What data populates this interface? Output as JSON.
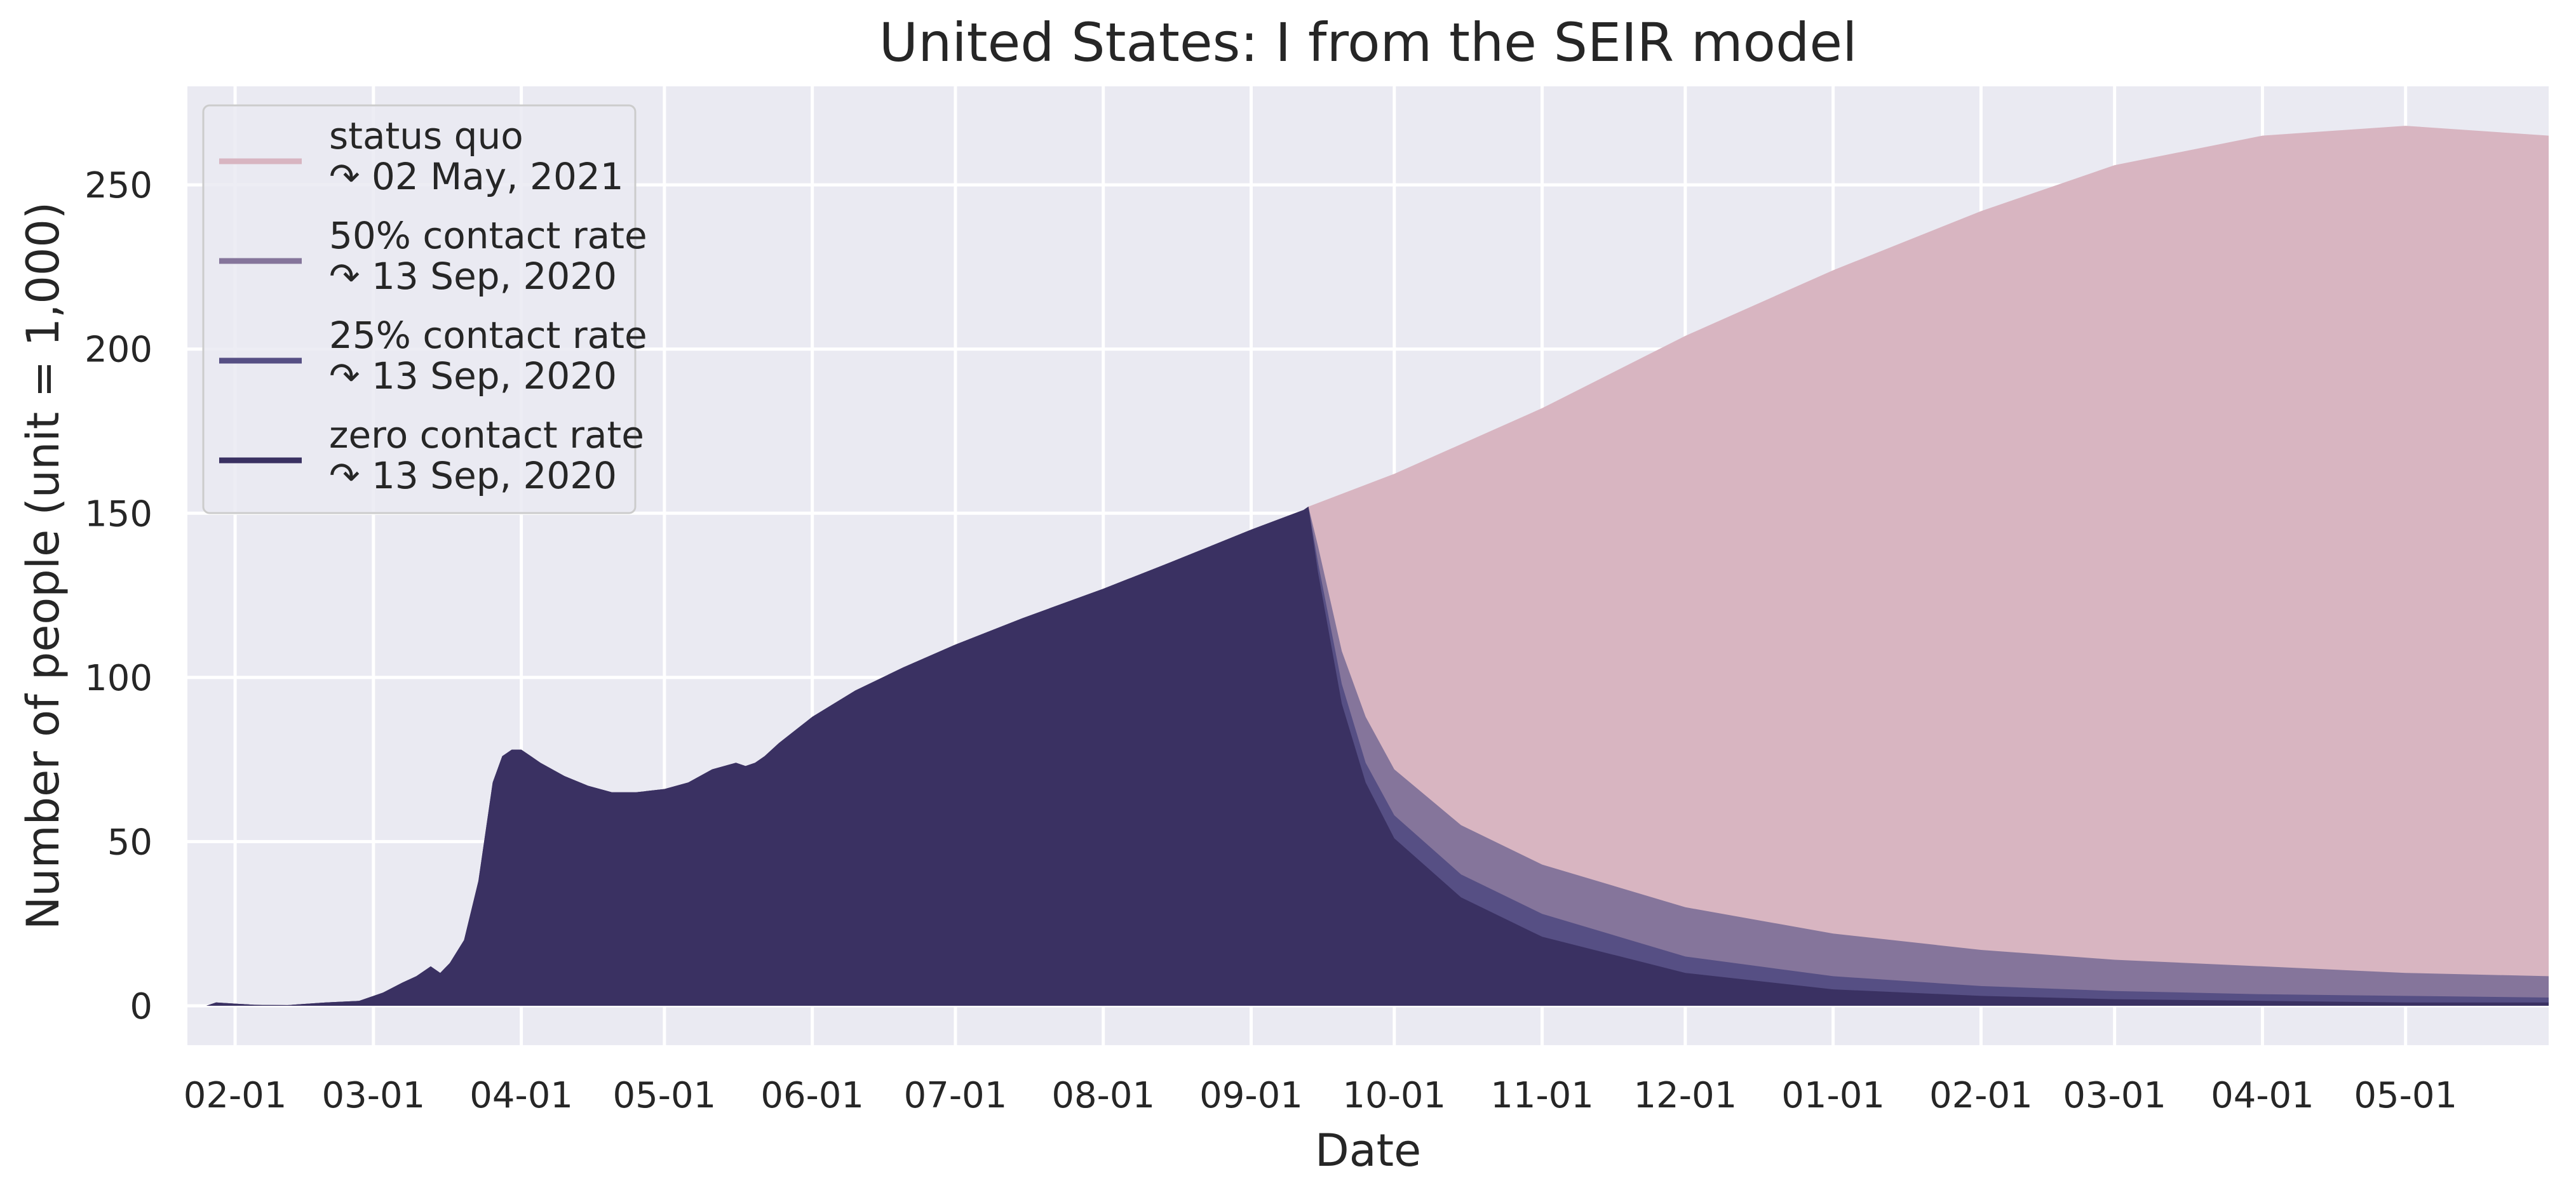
{
  "chart_data": {
    "type": "area",
    "title": "United States: I from the SEIR model",
    "xlabel": "Date",
    "ylabel": "Number of people (unit = 1,000)",
    "xlim": [
      "2020-01-22",
      "2021-05-31"
    ],
    "ylim": [
      -12,
      280
    ],
    "grid": true,
    "legend_position": "top-left",
    "x_ticks": [
      "02-01",
      "03-01",
      "04-01",
      "05-01",
      "06-01",
      "07-01",
      "08-01",
      "09-01",
      "10-01",
      "11-01",
      "12-01",
      "01-01",
      "02-01",
      "03-01",
      "04-01",
      "05-01"
    ],
    "x_tick_dates": [
      "2020-02-01",
      "2020-03-01",
      "2020-04-01",
      "2020-05-01",
      "2020-06-01",
      "2020-07-01",
      "2020-08-01",
      "2020-09-01",
      "2020-10-01",
      "2020-11-01",
      "2020-12-01",
      "2021-01-01",
      "2021-02-01",
      "2021-03-01",
      "2021-04-01",
      "2021-05-01"
    ],
    "y_ticks": [
      0,
      50,
      100,
      150,
      200,
      250
    ],
    "history": {
      "x": [
        "2020-01-22",
        "2020-01-26",
        "2020-01-28",
        "2020-02-05",
        "2020-02-12",
        "2020-02-20",
        "2020-02-27",
        "2020-03-03",
        "2020-03-07",
        "2020-03-10",
        "2020-03-13",
        "2020-03-15",
        "2020-03-17",
        "2020-03-20",
        "2020-03-23",
        "2020-03-26",
        "2020-03-28",
        "2020-03-30",
        "2020-04-01",
        "2020-04-03",
        "2020-04-05",
        "2020-04-10",
        "2020-04-15",
        "2020-04-20",
        "2020-04-25",
        "2020-05-01",
        "2020-05-06",
        "2020-05-11",
        "2020-05-16",
        "2020-05-18",
        "2020-05-20",
        "2020-05-22",
        "2020-05-25",
        "2020-06-01",
        "2020-06-10",
        "2020-06-20",
        "2020-07-01",
        "2020-07-15",
        "2020-08-01",
        "2020-08-15",
        "2020-09-01",
        "2020-09-12",
        "2020-09-13"
      ],
      "values": [
        0,
        0,
        1,
        0.3,
        0.2,
        1,
        1.5,
        4,
        7,
        9,
        12,
        10,
        13,
        20,
        38,
        68,
        76,
        78,
        78,
        76,
        74,
        70,
        67,
        65,
        65,
        66,
        68,
        72,
        74,
        73,
        74,
        76,
        80,
        88,
        96,
        103,
        110,
        118,
        127,
        135,
        145,
        151,
        152
      ]
    },
    "series": [
      {
        "name": "status quo",
        "label_end": "↷ 02 May, 2021",
        "color": "#d8b5c1",
        "x": [
          "2020-09-13",
          "2020-10-01",
          "2020-11-01",
          "2020-12-01",
          "2021-01-01",
          "2021-02-01",
          "2021-03-01",
          "2021-04-01",
          "2021-05-01",
          "2021-05-31"
        ],
        "values": [
          152,
          162,
          182,
          204,
          224,
          242,
          256,
          265,
          268,
          265
        ]
      },
      {
        "name": "50% contact rate",
        "label_end": "↷ 13 Sep, 2020",
        "color": "#85759b",
        "x": [
          "2020-09-13",
          "2020-09-15",
          "2020-09-20",
          "2020-09-25",
          "2020-10-01",
          "2020-10-15",
          "2020-11-01",
          "2020-12-01",
          "2021-01-01",
          "2021-02-01",
          "2021-03-01",
          "2021-04-01",
          "2021-05-01",
          "2021-05-31"
        ],
        "values": [
          152,
          140,
          108,
          88,
          72,
          55,
          43,
          30,
          22,
          17,
          14,
          12,
          10,
          9
        ]
      },
      {
        "name": "25% contact rate",
        "label_end": "↷ 13 Sep, 2020",
        "color": "#564f84",
        "x": [
          "2020-09-13",
          "2020-09-15",
          "2020-09-20",
          "2020-09-25",
          "2020-10-01",
          "2020-10-15",
          "2020-11-01",
          "2020-12-01",
          "2021-01-01",
          "2021-02-01",
          "2021-03-01",
          "2021-04-01",
          "2021-05-01",
          "2021-05-31"
        ],
        "values": [
          152,
          135,
          98,
          74,
          58,
          40,
          28,
          15,
          9,
          6,
          4.5,
          3.5,
          3,
          2.5
        ]
      },
      {
        "name": "zero contact rate",
        "label_end": "↷ 13 Sep, 2020",
        "color": "#3a3162",
        "x": [
          "2020-09-13",
          "2020-09-15",
          "2020-09-20",
          "2020-09-25",
          "2020-10-01",
          "2020-10-15",
          "2020-11-01",
          "2020-12-01",
          "2021-01-01",
          "2021-02-01",
          "2021-03-01",
          "2021-04-01",
          "2021-05-01",
          "2021-05-31"
        ],
        "values": [
          152,
          132,
          92,
          68,
          51,
          33,
          21,
          10,
          5,
          3,
          2,
          1.5,
          1,
          1
        ]
      }
    ]
  }
}
